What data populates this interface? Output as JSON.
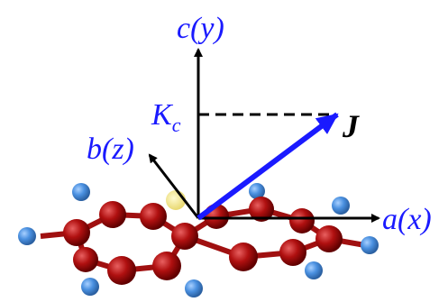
{
  "labels": {
    "c_axis": "c(y)",
    "a_axis": "a(x)",
    "b_axis": "b(z)",
    "vector": "J",
    "projection": {
      "main": "K",
      "sub": "c"
    }
  }
}
